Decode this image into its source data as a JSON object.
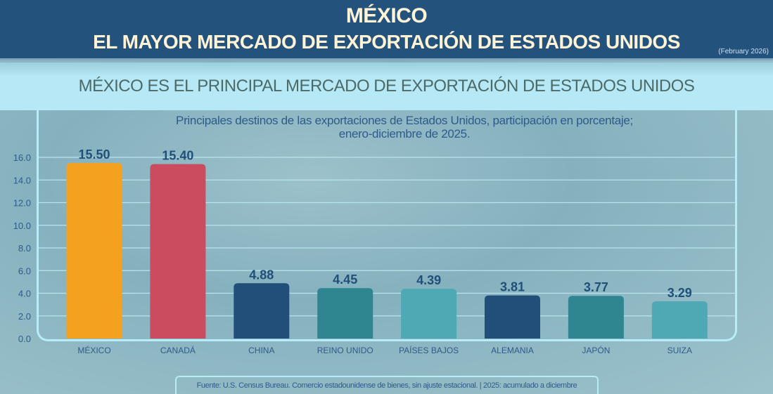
{
  "header": {
    "title_line1": "MÉXICO",
    "title_line2": "EL MAYOR MERCADO DE EXPORTACIÓN DE ESTADOS UNIDOS",
    "date": "(February 2026)"
  },
  "subtitle": "MÉXICO ES EL PRINCIPAL MERCADO DE EXPORTACIÓN DE ESTADOS UNIDOS",
  "footer": "Fuente: U.S. Census Bureau. Comercio estadounidense de bienes, sin ajuste estacional. | 2025: acumulado a diciembre",
  "chart_data": {
    "type": "bar",
    "title_line1": "Principales destinos de las exportaciones de Estados Unidos, participación en porcentaje;",
    "title_line2": "enero-diciembre de 2025.",
    "categories": [
      "MÉXICO",
      "CANADÁ",
      "CHINA",
      "REINO UNIDO",
      "PAÍSES BAJOS",
      "ALEMANIA",
      "JAPÓN",
      "SUIZA"
    ],
    "values": [
      15.5,
      15.4,
      4.88,
      4.45,
      4.39,
      3.81,
      3.77,
      3.29
    ],
    "data_labels": [
      "15.50",
      "15.40",
      "4.88",
      "4.45",
      "4.39",
      "3.81",
      "3.77",
      "3.29"
    ],
    "colors": [
      "#f5a120",
      "#cb4c5e",
      "#224f7a",
      "#2f8690",
      "#4fa9b4",
      "#224f7a",
      "#2f8690",
      "#4fa9b4"
    ],
    "ylim": [
      0,
      16
    ],
    "yticks": [
      "0.0",
      "2.0",
      "4.0",
      "6.0",
      "8.0",
      "10.0",
      "12.0",
      "14.0",
      "16.0"
    ],
    "grid": true
  }
}
